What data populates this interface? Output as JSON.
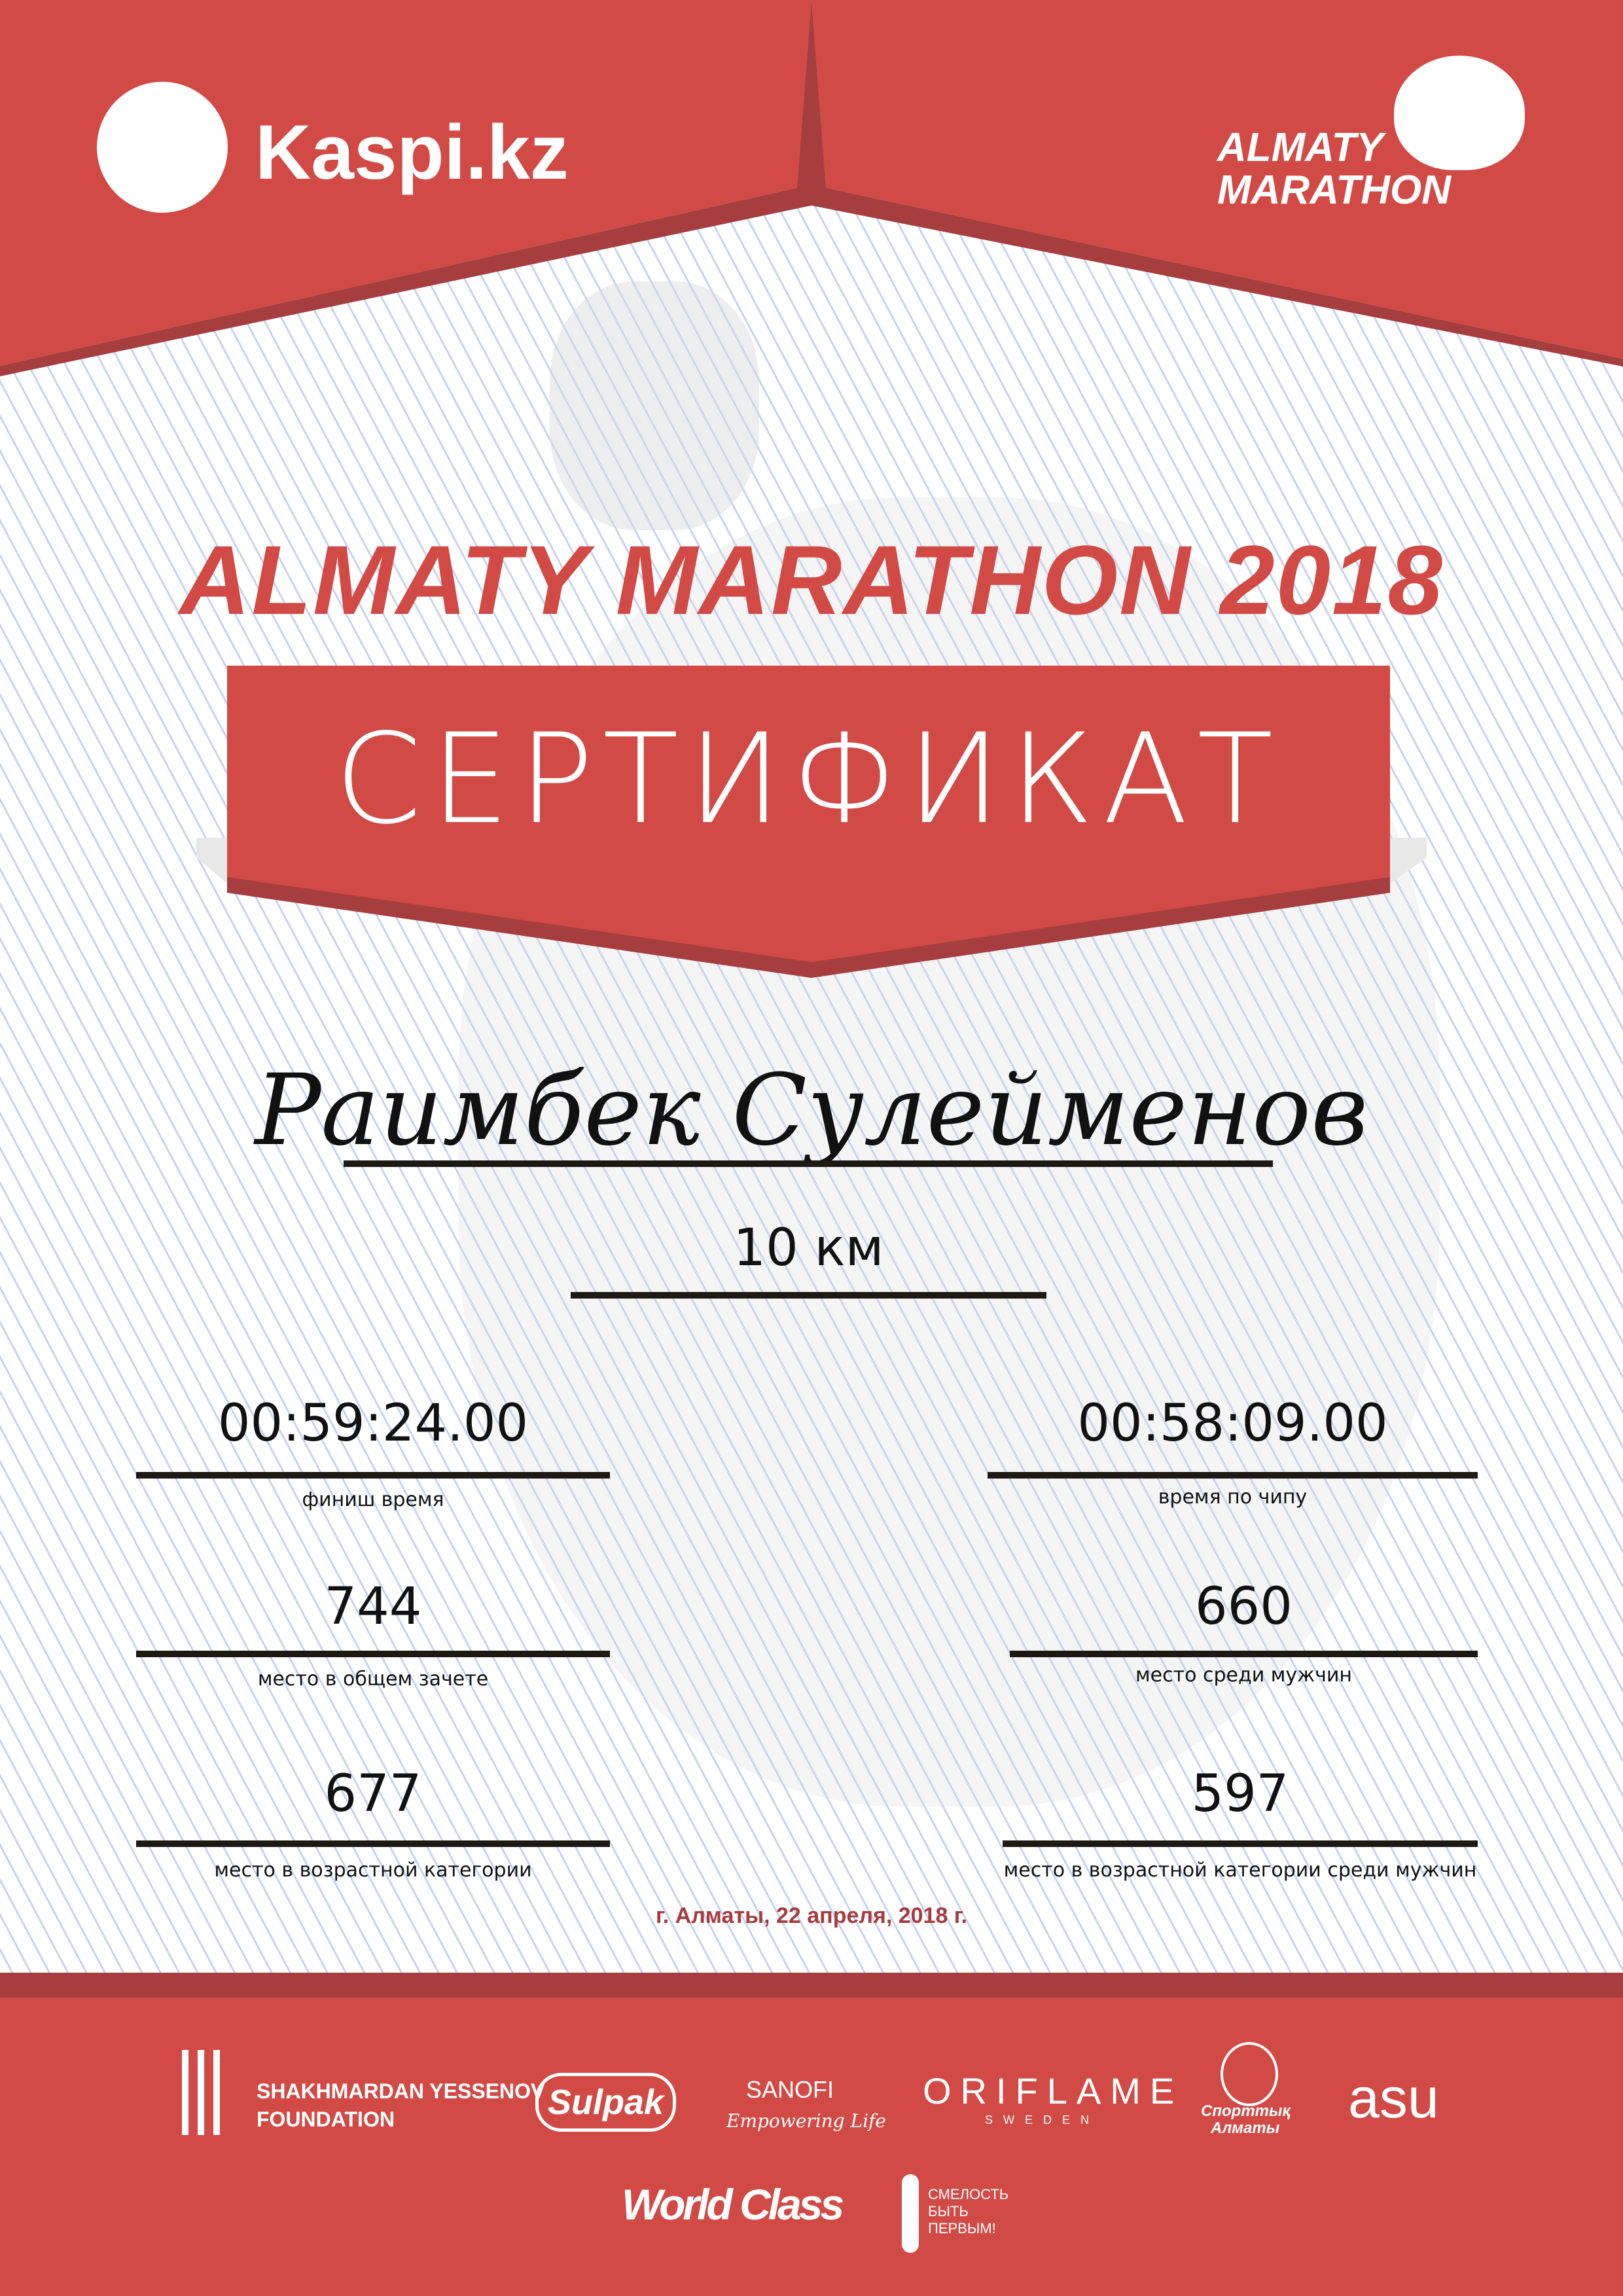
{
  "colors": {
    "brand_red": "#d24a45",
    "dark_red": "#a63e40",
    "date_red": "#a83b3e"
  },
  "header": {
    "left_logo": {
      "icon": "kaspi-people-icon",
      "text": "Kaspi.kz"
    },
    "right_logo": {
      "icon": "runner-icon",
      "line1": "ALMATY",
      "line2": "MARATHON"
    }
  },
  "title": "ALMATY MARATHON 2018",
  "certificate_label": "СЕРТИФИКАТ",
  "participant_name": "Раимбек Сулейменов",
  "distance": "10 км",
  "results": {
    "finish_time": {
      "value": "00:59:24.00",
      "label": "финиш время"
    },
    "chip_time": {
      "value": "00:58:09.00",
      "label": "время по чипу"
    },
    "overall_place": {
      "value": "744",
      "label": "место в общем зачете"
    },
    "gender_place": {
      "value": "660",
      "label": "место среди мужчин"
    },
    "age_place": {
      "value": "677",
      "label": "место в возрастной категории"
    },
    "age_gender_place": {
      "value": "597",
      "label": "место в возрастной категории среди мужчин"
    }
  },
  "date": "г. Алматы, 22 апреля, 2018 г.",
  "sponsors": {
    "yessenov": {
      "line1": "SHAKHMARDAN YESSENOV",
      "line2": "FOUNDATION"
    },
    "sulpak": "Sulpak",
    "sanofi": {
      "name": "SANOFI",
      "tagline": "Empowering Life"
    },
    "oriflame": {
      "name": "ORIFLAME",
      "sub": "SWEDEN"
    },
    "sport_almaty": {
      "line1": "Спорттық",
      "line2": "Алматы"
    },
    "asu": "asu",
    "worldclass": "World Class",
    "fund": {
      "line1": "СМЕЛОСТЬ",
      "line2": "БЫТЬ",
      "line3": "ПЕРВЫМ!"
    }
  }
}
